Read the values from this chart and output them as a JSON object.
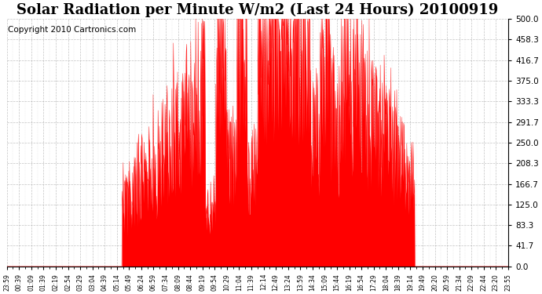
{
  "title": "Solar Radiation per Minute W/m2 (Last 24 Hours) 20100919",
  "copyright": "Copyright 2010 Cartronics.com",
  "y_min": 0.0,
  "y_max": 500.0,
  "y_ticks": [
    0.0,
    41.7,
    83.3,
    125.0,
    166.7,
    208.3,
    250.0,
    291.7,
    333.3,
    375.0,
    416.7,
    458.3,
    500.0
  ],
  "x_labels": [
    "23:59",
    "00:39",
    "01:09",
    "01:39",
    "02:19",
    "02:54",
    "03:29",
    "03:04",
    "04:39",
    "05:14",
    "05:49",
    "06:24",
    "06:59",
    "07:34",
    "08:09",
    "08:44",
    "09:19",
    "09:54",
    "10:29",
    "11:04",
    "11:39",
    "12:14",
    "12:49",
    "13:24",
    "13:59",
    "14:34",
    "15:09",
    "15:44",
    "16:19",
    "16:54",
    "17:29",
    "18:04",
    "18:39",
    "19:14",
    "19:49",
    "20:20",
    "20:59",
    "21:34",
    "22:09",
    "22:44",
    "23:20",
    "23:55"
  ],
  "fill_color": "#FF0000",
  "line_color": "#FF0000",
  "bg_color": "#FFFFFF",
  "grid_color": "#AAAAAA",
  "title_fontsize": 13,
  "copyright_fontsize": 7.5
}
